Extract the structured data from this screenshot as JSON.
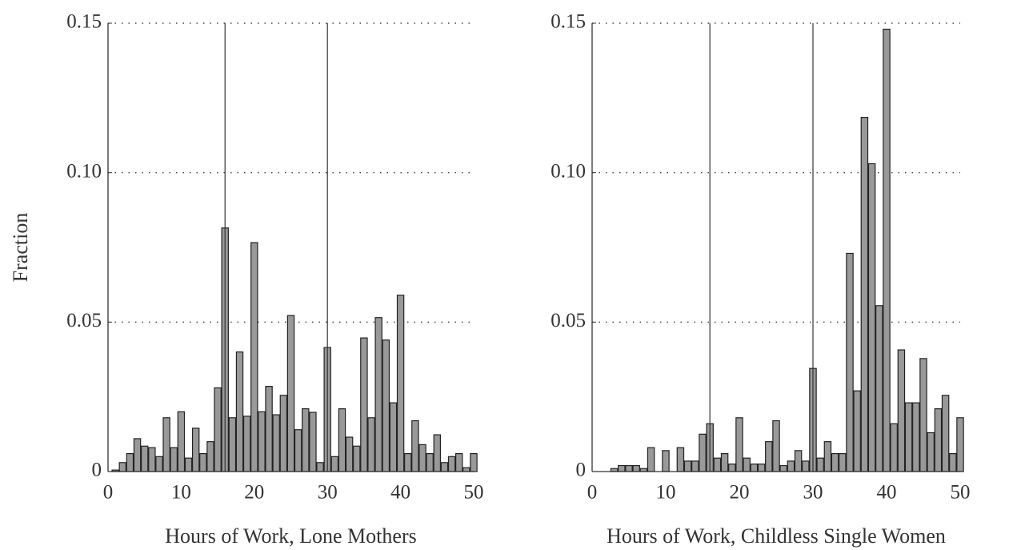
{
  "chart_data": [
    {
      "type": "bar",
      "xlabel": "Hours of Work, Lone Mothers",
      "ylabel": "Fraction",
      "x": [
        1,
        2,
        3,
        4,
        5,
        6,
        7,
        8,
        9,
        10,
        11,
        12,
        13,
        14,
        15,
        16,
        17,
        18,
        19,
        20,
        21,
        22,
        23,
        24,
        25,
        26,
        27,
        28,
        29,
        30,
        31,
        32,
        33,
        34,
        35,
        36,
        37,
        38,
        39,
        40,
        41,
        42,
        43,
        44,
        45,
        46,
        47,
        48,
        49,
        50
      ],
      "values": [
        0.0005,
        0.003,
        0.006,
        0.011,
        0.0085,
        0.008,
        0.005,
        0.018,
        0.008,
        0.02,
        0.0045,
        0.0145,
        0.006,
        0.01,
        0.028,
        0.0815,
        0.018,
        0.04,
        0.0185,
        0.0766,
        0.02,
        0.0285,
        0.019,
        0.0255,
        0.0522,
        0.014,
        0.021,
        0.0198,
        0.003,
        0.0415,
        0.005,
        0.021,
        0.0115,
        0.0085,
        0.0447,
        0.018,
        0.0515,
        0.044,
        0.023,
        0.059,
        0.006,
        0.017,
        0.009,
        0.006,
        0.0123,
        0.003,
        0.005,
        0.006,
        0.0013,
        0.006
      ],
      "color": "#999999",
      "vlines": [
        16,
        30
      ],
      "xlim": [
        0,
        50
      ],
      "xticks": [
        0,
        10,
        20,
        30,
        40,
        50
      ],
      "ylim": [
        0,
        0.15
      ],
      "yticks": [
        0,
        0.05,
        {
          "value": 0.1,
          "label": "0.10"
        },
        0.15
      ],
      "grid": true
    },
    {
      "type": "bar",
      "xlabel": "Hours of Work, Childless Single Women",
      "x": [
        1,
        2,
        3,
        4,
        5,
        6,
        7,
        8,
        9,
        10,
        11,
        12,
        13,
        14,
        15,
        16,
        17,
        18,
        19,
        20,
        21,
        22,
        23,
        24,
        25,
        26,
        27,
        28,
        29,
        30,
        31,
        32,
        33,
        34,
        35,
        36,
        37,
        38,
        39,
        40,
        41,
        42,
        43,
        44,
        45,
        46,
        47,
        48,
        49,
        50
      ],
      "values": [
        0,
        0,
        0.001,
        0.002,
        0.002,
        0.002,
        0.001,
        0.008,
        0,
        0.007,
        0,
        0.008,
        0.0035,
        0.0035,
        0.0125,
        0.016,
        0.0045,
        0.006,
        0.0025,
        0.018,
        0.0045,
        0.0025,
        0.0025,
        0.01,
        0.017,
        0.002,
        0.0035,
        0.007,
        0.0035,
        0.0345,
        0.0045,
        0.01,
        0.006,
        0.006,
        0.073,
        0.027,
        0.1185,
        0.103,
        0.0555,
        0.148,
        0.016,
        0.0407,
        0.023,
        0.023,
        0.0378,
        0.013,
        0.021,
        0.0255,
        0.006,
        0.018
      ],
      "color": "#999999",
      "vlines": [
        16,
        30
      ],
      "xlim": [
        0,
        50
      ],
      "xticks": [
        0,
        10,
        20,
        30,
        40,
        50
      ],
      "ylim": [
        0,
        0.15
      ],
      "yticks": [
        0,
        0.05,
        {
          "value": 0.1,
          "label": "0.10"
        },
        0.15
      ],
      "grid": true
    }
  ]
}
